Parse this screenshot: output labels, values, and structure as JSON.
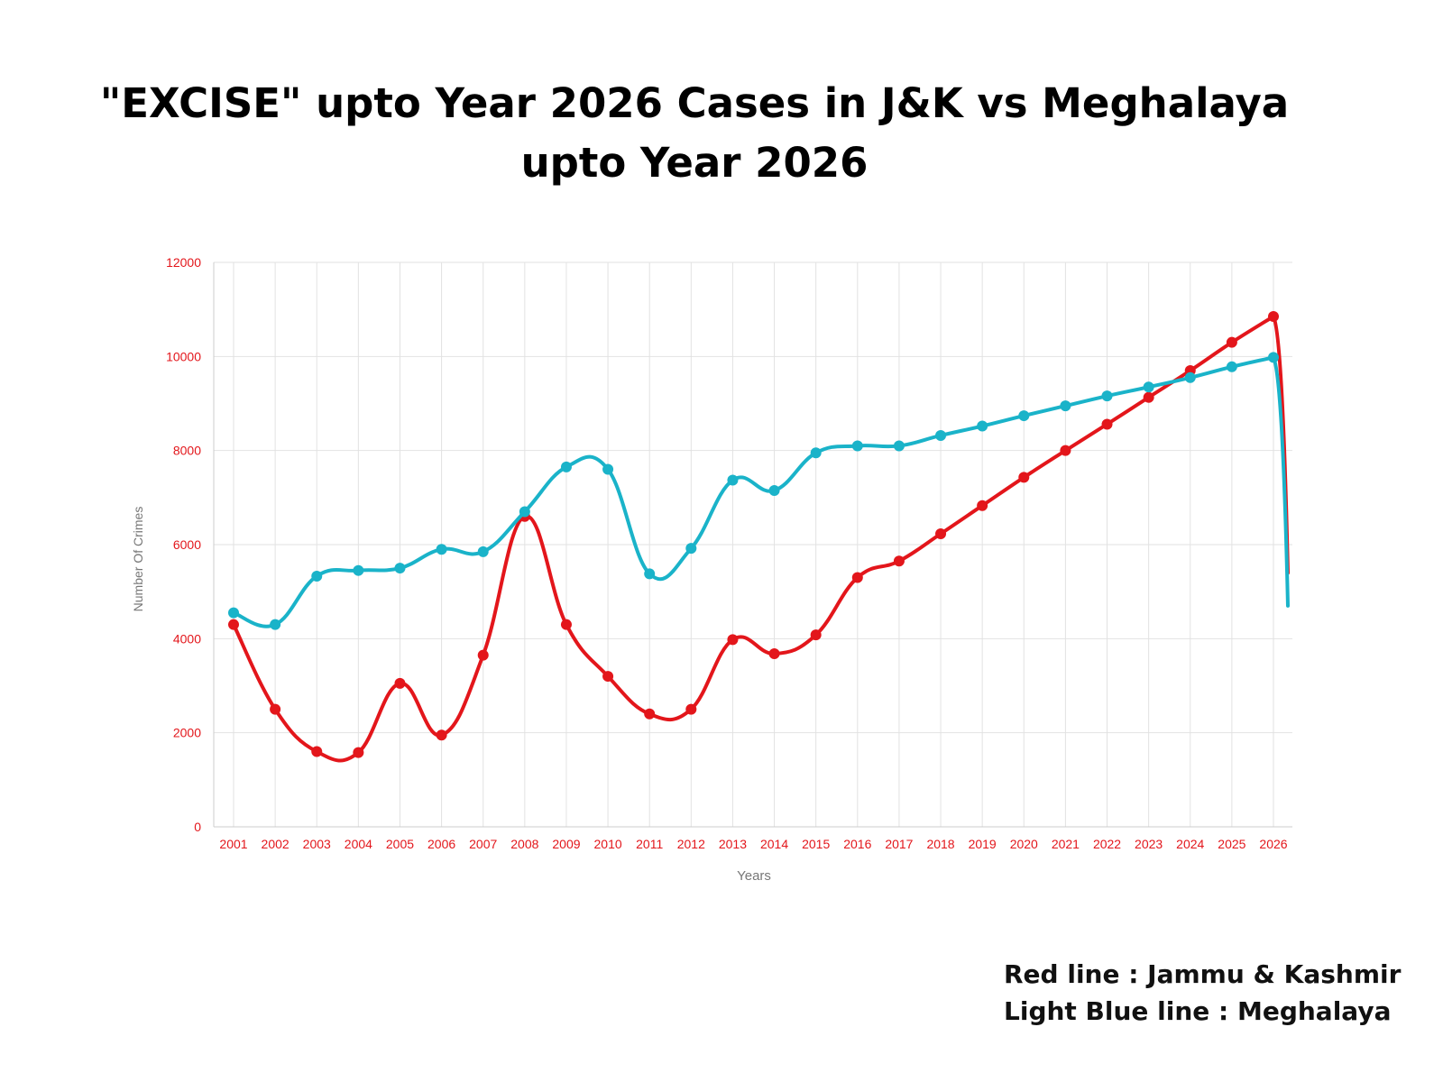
{
  "title_lines": [
    "\"EXCISE\"  upto Year 2026 Cases in J&K vs Meghalaya",
    "upto Year 2026"
  ],
  "legend_lines": [
    "Red line : Jammu & Kashmir",
    "Light Blue line : Meghalaya"
  ],
  "colors": {
    "jk": "#e3161b",
    "meghalaya": "#1ab3c9",
    "tick_label": "#e3161b",
    "axis_label": "#777777",
    "grid": "#e2e2e2"
  },
  "chart_data": {
    "type": "line",
    "title": "\"EXCISE\"  upto Year 2026 Cases in J&K vs Meghalaya upto Year 2026",
    "xlabel": "Years",
    "ylabel": "Number Of Crimes",
    "ylim": [
      0,
      12000
    ],
    "yticks": [
      0,
      2000,
      4000,
      6000,
      8000,
      10000,
      12000
    ],
    "grid": true,
    "categories": [
      "2001",
      "2002",
      "2003",
      "2004",
      "2005",
      "2006",
      "2007",
      "2008",
      "2009",
      "2010",
      "2011",
      "2012",
      "2013",
      "2014",
      "2015",
      "2016",
      "2017",
      "2018",
      "2019",
      "2020",
      "2021",
      "2022",
      "2023",
      "2024",
      "2025",
      "2026"
    ],
    "series": [
      {
        "name": "Jammu & Kashmir",
        "color": "#e3161b",
        "values": [
          4300,
          2500,
          1600,
          1580,
          3050,
          1950,
          3650,
          6600,
          4300,
          3200,
          2400,
          2500,
          3980,
          3680,
          4080,
          5300,
          5650,
          6230,
          6830,
          7430,
          8000,
          8560,
          9130,
          9700,
          10300,
          10850
        ],
        "end_drop_value": 5400
      },
      {
        "name": "Meghalaya",
        "color": "#1ab3c9",
        "values": [
          4550,
          4300,
          5330,
          5450,
          5500,
          5900,
          5850,
          6700,
          7650,
          7600,
          5380,
          5920,
          7370,
          7150,
          7950,
          8100,
          8100,
          8320,
          8520,
          8740,
          8950,
          9160,
          9350,
          9550,
          9780,
          9980
        ],
        "end_drop_value": 4700
      }
    ]
  }
}
